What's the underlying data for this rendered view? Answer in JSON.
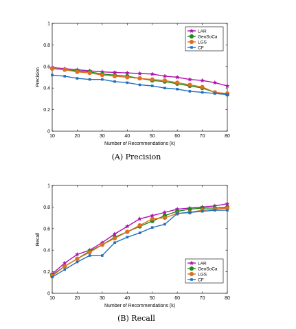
{
  "chart_data": [
    {
      "type": "line",
      "caption": "(A) Precision",
      "xlabel": "Number of Recommendations (k)",
      "ylabel": "Precision",
      "xlim": [
        10,
        80
      ],
      "ylim": [
        0,
        1
      ],
      "xticks": [
        10,
        20,
        30,
        40,
        50,
        60,
        70,
        80
      ],
      "yticks": [
        0,
        0.2,
        0.4,
        0.6,
        0.8,
        1
      ],
      "ytick_labels": [
        "0",
        "0.2",
        "0.4",
        "0.6",
        "0.8",
        "1"
      ],
      "legend_position": "top-right",
      "x": [
        10,
        15,
        20,
        25,
        30,
        35,
        40,
        45,
        50,
        55,
        60,
        65,
        70,
        75,
        80
      ],
      "series": [
        {
          "name": "LAR",
          "color": "#b010b0",
          "marker": "star",
          "values": [
            0.59,
            0.58,
            0.57,
            0.56,
            0.55,
            0.545,
            0.54,
            0.535,
            0.53,
            0.51,
            0.5,
            0.48,
            0.47,
            0.45,
            0.42
          ]
        },
        {
          "name": "GeoSoCa",
          "color": "#1d8a1d",
          "marker": "circle",
          "values": [
            0.58,
            0.57,
            0.56,
            0.55,
            0.53,
            0.52,
            0.51,
            0.49,
            0.47,
            0.46,
            0.44,
            0.42,
            0.4,
            0.36,
            0.34
          ]
        },
        {
          "name": "LGS",
          "color": "#e07020",
          "marker": "circle",
          "values": [
            0.58,
            0.57,
            0.55,
            0.54,
            0.52,
            0.51,
            0.5,
            0.49,
            0.48,
            0.47,
            0.45,
            0.43,
            0.41,
            0.36,
            0.35
          ]
        },
        {
          "name": "CF",
          "color": "#1f6fbf",
          "marker": "square",
          "values": [
            0.52,
            0.51,
            0.49,
            0.48,
            0.48,
            0.46,
            0.45,
            0.43,
            0.42,
            0.4,
            0.39,
            0.37,
            0.36,
            0.35,
            0.34
          ]
        }
      ]
    },
    {
      "type": "line",
      "caption": "(B) Recall",
      "xlabel": "Number of Recommendations (k)",
      "ylabel": "Recall",
      "xlim": [
        10,
        80
      ],
      "ylim": [
        0,
        1
      ],
      "xticks": [
        10,
        20,
        30,
        40,
        50,
        60,
        70,
        80
      ],
      "yticks": [
        0,
        0.2,
        0.4,
        0.6,
        0.8,
        1
      ],
      "ytick_labels": [
        "0",
        "0.2",
        "0.4",
        "0.6",
        "0.8",
        "1"
      ],
      "legend_position": "bottom-right",
      "x": [
        10,
        15,
        20,
        25,
        30,
        35,
        40,
        45,
        50,
        55,
        60,
        65,
        70,
        75,
        80
      ],
      "series": [
        {
          "name": "LAR",
          "color": "#b010b0",
          "marker": "star",
          "values": [
            0.18,
            0.28,
            0.36,
            0.4,
            0.47,
            0.55,
            0.62,
            0.69,
            0.72,
            0.75,
            0.78,
            0.79,
            0.8,
            0.81,
            0.83
          ]
        },
        {
          "name": "GeoSoCa",
          "color": "#1d8a1d",
          "marker": "circle",
          "values": [
            0.17,
            0.25,
            0.32,
            0.39,
            0.45,
            0.52,
            0.57,
            0.62,
            0.67,
            0.72,
            0.76,
            0.78,
            0.79,
            0.79,
            0.8
          ]
        },
        {
          "name": "LGS",
          "color": "#e07020",
          "marker": "circle",
          "values": [
            0.16,
            0.25,
            0.32,
            0.38,
            0.45,
            0.51,
            0.57,
            0.63,
            0.69,
            0.7,
            0.74,
            0.75,
            0.77,
            0.78,
            0.79
          ]
        },
        {
          "name": "CF",
          "color": "#1f6fbf",
          "marker": "square",
          "values": [
            0.15,
            0.22,
            0.29,
            0.35,
            0.35,
            0.47,
            0.52,
            0.56,
            0.61,
            0.64,
            0.74,
            0.75,
            0.76,
            0.77,
            0.77
          ]
        }
      ]
    }
  ]
}
